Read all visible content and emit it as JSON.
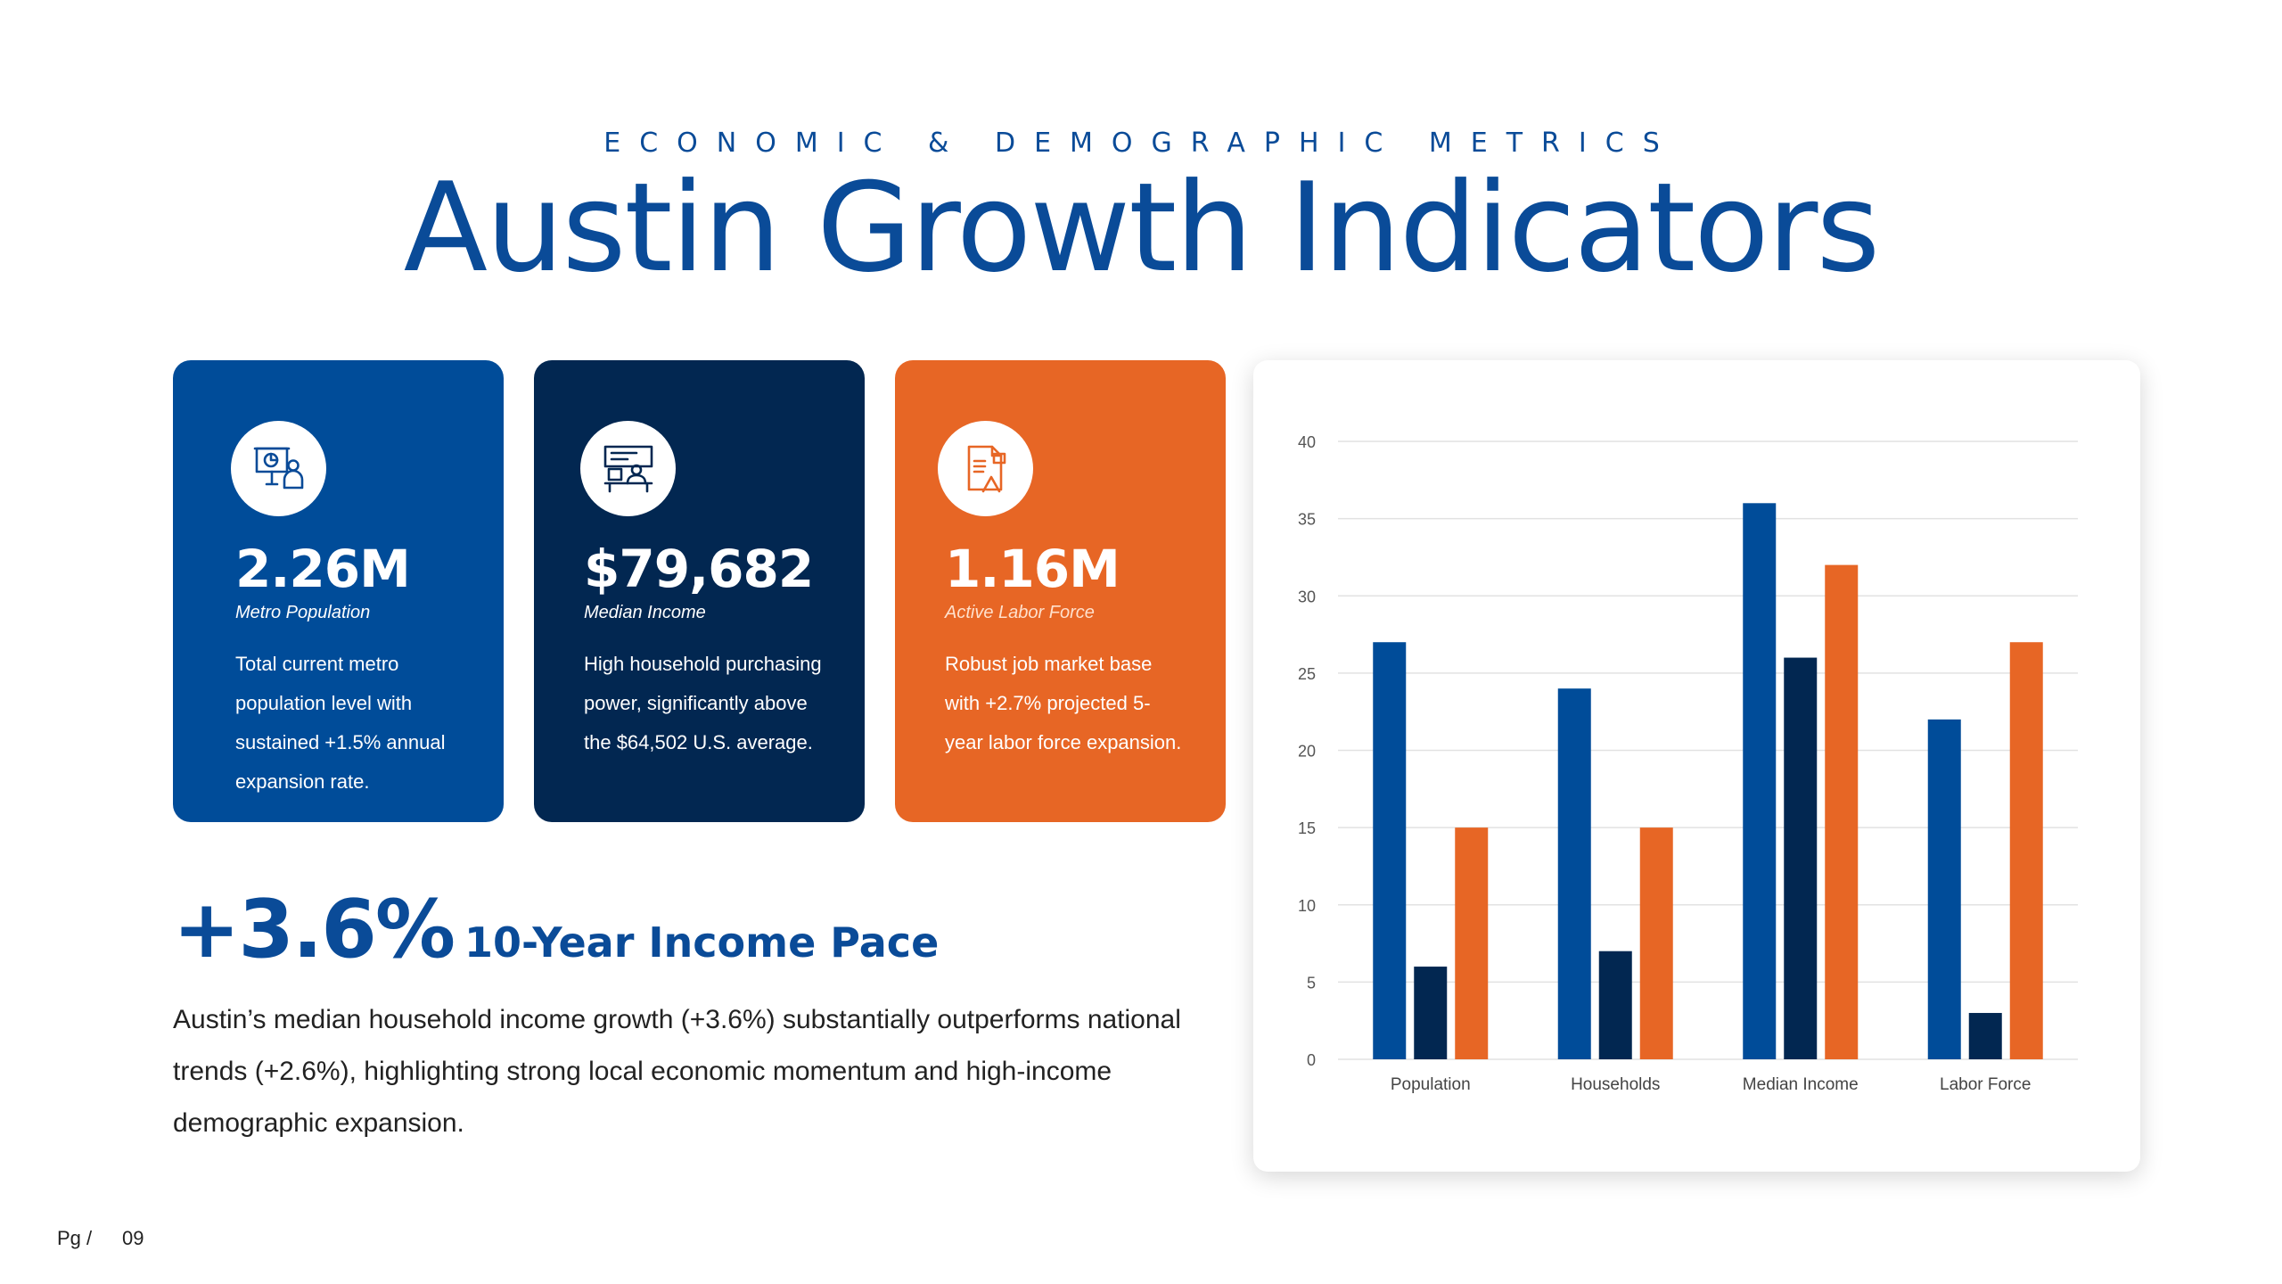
{
  "header": {
    "eyebrow": "ECONOMIC & DEMOGRAPHIC METRICS",
    "title": "Austin Growth Indicators"
  },
  "cards": [
    {
      "icon": "presentation-chart-icon",
      "value": "2.26M",
      "label": "Metro Population",
      "description": "Total current metro population level with sustained +1.5% annual expansion rate.",
      "color": "#004c99"
    },
    {
      "icon": "teacher-screen-icon",
      "value": "$79,682",
      "label": "Median Income",
      "description": "High household purchasing power, significantly above the $64,502 U.S. average.",
      "color": "#022751"
    },
    {
      "icon": "document-chart-icon",
      "value": "1.16M",
      "label": "Active Labor Force",
      "description": "Robust job market base with +2.7% projected 5-year labor force expansion.",
      "color": "#e76625"
    }
  ],
  "pace": {
    "percent": "+3.6%",
    "label": "10-Year Income Pace"
  },
  "paragraph": "Austin’s median household income growth (+3.6%) substantially outperforms national trends (+2.6%), highlighting strong local economic momentum and high-income demographic expansion.",
  "footer": {
    "page_label": "Pg /",
    "page_number": "09"
  },
  "chart_data": {
    "type": "bar",
    "categories": [
      "Population",
      "Households",
      "Median Income",
      "Labor Force"
    ],
    "series": [
      {
        "values": [
          27,
          24,
          36,
          22
        ],
        "color": "#004c99"
      },
      {
        "values": [
          6,
          7,
          26,
          3
        ],
        "color": "#022751"
      },
      {
        "values": [
          15,
          15,
          32,
          27
        ],
        "color": "#e76625"
      }
    ],
    "ylim": [
      0,
      40
    ],
    "yticks": [
      0,
      5,
      10,
      15,
      20,
      25,
      30,
      35,
      40
    ],
    "grid": true
  }
}
